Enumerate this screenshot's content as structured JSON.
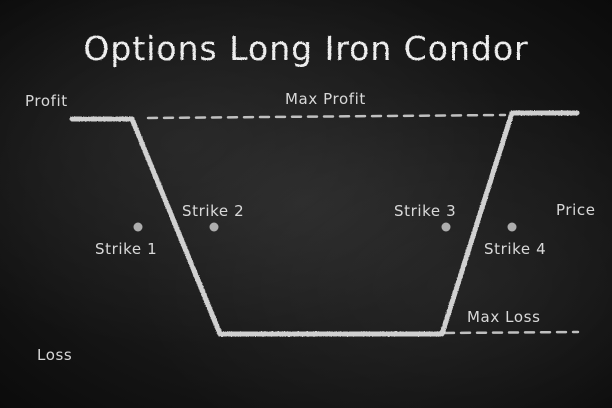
{
  "title": "Options Long Iron Condor",
  "labels": {
    "profit": "Profit",
    "loss": "Loss",
    "price": "Price",
    "max_profit": "Max Profit",
    "max_loss": "Max Loss"
  },
  "strikes": [
    {
      "id": 1,
      "label": "Strike 1"
    },
    {
      "id": 2,
      "label": "Strike 2"
    },
    {
      "id": 3,
      "label": "Strike 3"
    },
    {
      "id": 4,
      "label": "Strike 4"
    }
  ],
  "colors": {
    "board": "#161616",
    "chalk": "#e4e4e4"
  }
}
